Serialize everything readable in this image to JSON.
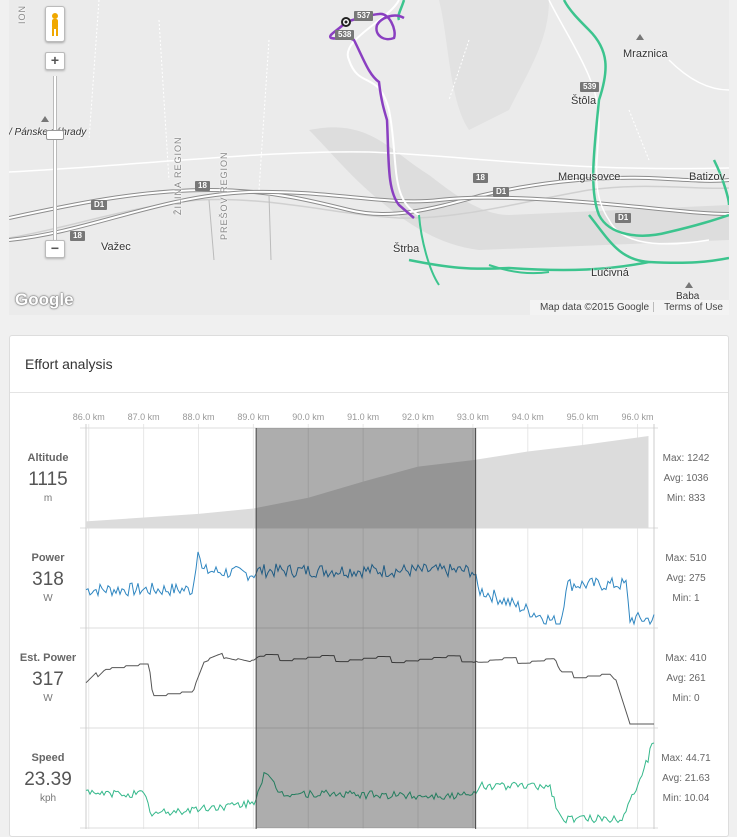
{
  "map": {
    "labels": {
      "mraznica": "Mraznica",
      "stola": "Štôla",
      "mengusovce": "Mengusovce",
      "batizovce": "Batizov",
      "panske": "/ Pánske záhrady",
      "vazec": "Važec",
      "strba": "Štrba",
      "luciivna": "Lučivná",
      "baba": "Baba",
      "zilina": "ŽILINA REGION",
      "presov": "PREŠOV REGION",
      "region_left": "ION"
    },
    "shields": {
      "r537": "537",
      "r538": "538",
      "r539": "539",
      "r18a": "18",
      "r18b": "18",
      "r18c": "18",
      "d1a": "D1",
      "d1b": "D1",
      "d1c": "D1"
    },
    "zoom_in": "+",
    "zoom_out": "−",
    "logo": "Google",
    "attribution": "Map data ©2015 Google",
    "terms": "Terms of Use",
    "colors": {
      "route": "#8a3fc1",
      "trail": "#3cc48e",
      "road": "#ffffff",
      "land": "#e9e9e9"
    }
  },
  "panel": {
    "title": "Effort analysis"
  },
  "chart_data": {
    "type": "line",
    "x_ticks": [
      "86.0 km",
      "87.0 km",
      "88.0 km",
      "89.0 km",
      "90.0 km",
      "91.0 km",
      "92.0 km",
      "93.0 km",
      "94.0 km",
      "95.0 km",
      "96.0 km"
    ],
    "x_range_km": [
      85.95,
      96.3
    ],
    "selection_km": [
      89.05,
      93.05
    ],
    "colors": {
      "altitude": "#dcdcdc",
      "power": "#2e86c1",
      "est_power": "#555555",
      "speed": "#35b88b",
      "selection": "rgba(0,0,0,0.32)"
    },
    "metrics": [
      {
        "key": "altitude",
        "label": "Altitude",
        "value": "1115",
        "unit": "m",
        "max": "Max: 1242",
        "avg": "Avg: 1036",
        "min": "Min: 833",
        "ylim": [
          833,
          1242
        ]
      },
      {
        "key": "power",
        "label": "Power",
        "value": "318",
        "unit": "W",
        "max": "Max: 510",
        "avg": "Avg: 275",
        "min": "Min: 1",
        "ylim": [
          1,
          510
        ]
      },
      {
        "key": "est_power",
        "label": "Est. Power",
        "value": "317",
        "unit": "W",
        "max": "Max: 410",
        "avg": "Avg: 261",
        "min": "Min: 0",
        "ylim": [
          0,
          410
        ]
      },
      {
        "key": "speed",
        "label": "Speed",
        "value": "23.39",
        "unit": "kph",
        "max": "Max: 44.71",
        "avg": "Avg: 21.63",
        "min": "Min: 10.04",
        "ylim": [
          10.04,
          44.71
        ]
      }
    ],
    "series": [
      {
        "key": "altitude",
        "segments": [
          [
            85.95,
            845
          ],
          [
            88.0,
            880
          ],
          [
            89.0,
            905
          ],
          [
            90.0,
            955
          ],
          [
            91.0,
            1030
          ],
          [
            92.0,
            1100
          ],
          [
            93.0,
            1130
          ],
          [
            94.0,
            1170
          ],
          [
            95.0,
            1200
          ],
          [
            95.8,
            1228
          ],
          [
            96.2,
            1242
          ]
        ]
      },
      {
        "key": "power",
        "profile": [
          [
            85.95,
            200
          ],
          [
            87.9,
            200
          ],
          [
            88.0,
            480
          ],
          [
            88.05,
            310
          ],
          [
            89.0,
            290
          ],
          [
            89.1,
            310
          ],
          [
            93.0,
            310
          ],
          [
            93.1,
            200
          ],
          [
            94.6,
            0
          ],
          [
            94.7,
            230
          ],
          [
            95.8,
            230
          ],
          [
            95.85,
            30
          ],
          [
            96.3,
            30
          ]
        ]
      },
      {
        "key": "est_power",
        "profile": [
          [
            85.95,
            180
          ],
          [
            86.3,
            270
          ],
          [
            87.1,
            270
          ],
          [
            87.15,
            150
          ],
          [
            87.9,
            150
          ],
          [
            88.1,
            280
          ],
          [
            88.5,
            320
          ],
          [
            89.0,
            290
          ],
          [
            89.1,
            310
          ],
          [
            93.0,
            300
          ],
          [
            93.1,
            290
          ],
          [
            94.5,
            300
          ],
          [
            94.6,
            230
          ],
          [
            95.5,
            230
          ],
          [
            95.6,
            200
          ],
          [
            95.85,
            0
          ],
          [
            96.3,
            0
          ]
        ]
      },
      {
        "key": "speed",
        "profile": [
          [
            85.95,
            22
          ],
          [
            87.0,
            22
          ],
          [
            87.15,
            14
          ],
          [
            88.0,
            16
          ],
          [
            89.0,
            18
          ],
          [
            89.2,
            30
          ],
          [
            89.5,
            22
          ],
          [
            93.0,
            21
          ],
          [
            93.1,
            25
          ],
          [
            94.4,
            25
          ],
          [
            94.6,
            12
          ],
          [
            95.7,
            12
          ],
          [
            96.1,
            30
          ],
          [
            96.3,
            43
          ]
        ]
      }
    ]
  }
}
